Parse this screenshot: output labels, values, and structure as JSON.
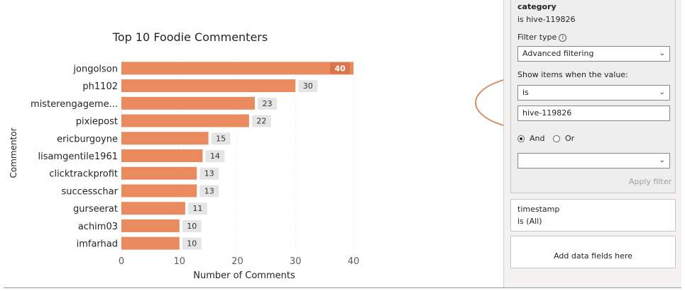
{
  "chart_data": {
    "type": "bar",
    "title": "Top 10 Foodie Commenters",
    "xlabel": "Number of Comments",
    "ylabel": "Commentor",
    "categories": [
      "jongolson",
      "ph1102",
      "misterengageme...",
      "pixiepost",
      "ericburgoyne",
      "lisamgentile1961",
      "clicktrackprofit",
      "successchar",
      "gurseerat",
      "achim03",
      "imfarhad"
    ],
    "values": [
      40,
      30,
      23,
      22,
      15,
      14,
      13,
      13,
      11,
      10,
      10
    ],
    "xlim": [
      0,
      40
    ],
    "xticks": [
      0,
      10,
      20,
      30,
      40
    ],
    "bar_color": "#ea8b5f",
    "grid": true
  },
  "filter_pane": {
    "category_card": {
      "title": "category",
      "summary": "is hive-119826",
      "filter_type_label": "Filter type",
      "filter_type_value": "Advanced filtering",
      "show_items_label": "Show items when the value:",
      "condition_value": "is",
      "condition_input": "hive-119826",
      "and_label": "And",
      "or_label": "Or",
      "apply_label": "Apply filter"
    },
    "timestamp_card": {
      "title": "timestamp",
      "summary": "is (All)"
    },
    "add_fields_label": "Add data fields here"
  },
  "colors": {
    "accent": "#ea8b5f",
    "highlight_oval": "#d58a5f"
  }
}
